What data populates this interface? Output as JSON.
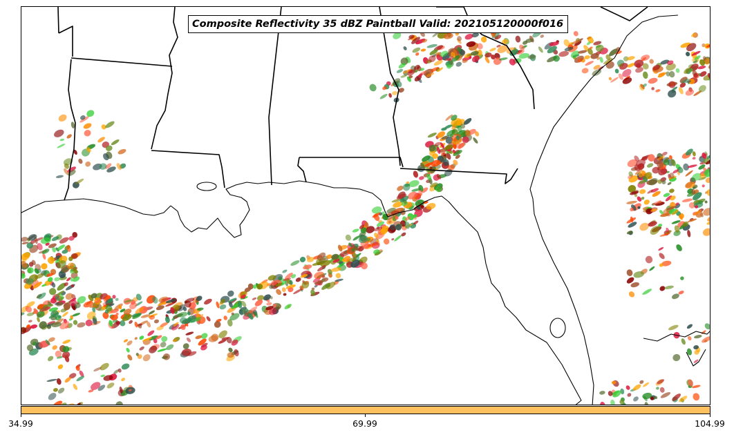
{
  "title": "Composite Reflectivity 35 dBZ Paintball Valid: 202105120000f016",
  "colorbar": {
    "color": "#ffc060",
    "ticks": [
      "34.99",
      "69.99",
      "104.99"
    ]
  },
  "map": {
    "region": "Gulf Coast / Southeastern United States",
    "features": [
      "state-boundaries",
      "coastlines",
      "lakes"
    ]
  },
  "member_colors": [
    "#dc143c",
    "#ff4500",
    "#ff8c00",
    "#32cd32",
    "#2e8b57",
    "#b22222",
    "#808000",
    "#8b0000",
    "#228b22",
    "#ff6347",
    "#556b2f",
    "#d2691e",
    "#a0522d",
    "#2f4f4f",
    "#6b8e23",
    "#ffa500"
  ]
}
